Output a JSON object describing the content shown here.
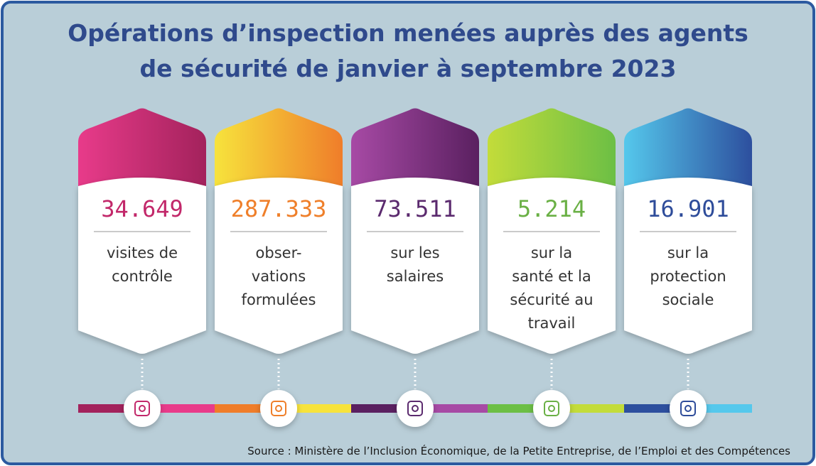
{
  "title_lines": [
    "Opérations d’inspection menées auprès des agents",
    "de sécurité de janvier à septembre 2023"
  ],
  "cards": [
    {
      "value": "34.649",
      "label_lines": [
        "visites de",
        "contrôle"
      ]
    },
    {
      "value": "287.333",
      "label_lines": [
        "obser-",
        "vations",
        "formulées"
      ]
    },
    {
      "value": "73.511",
      "label_lines": [
        "sur les",
        "salaires"
      ]
    },
    {
      "value": "5.214",
      "label_lines": [
        "sur la",
        "santé et la",
        "sécurité au",
        "travail"
      ]
    },
    {
      "value": "16.901",
      "label_lines": [
        "sur la",
        "protection",
        "sociale"
      ]
    }
  ],
  "source": "Source : Ministère de l’Inclusion Économique, de la Petite Entreprise, de l’Emploi et des Compétences"
}
